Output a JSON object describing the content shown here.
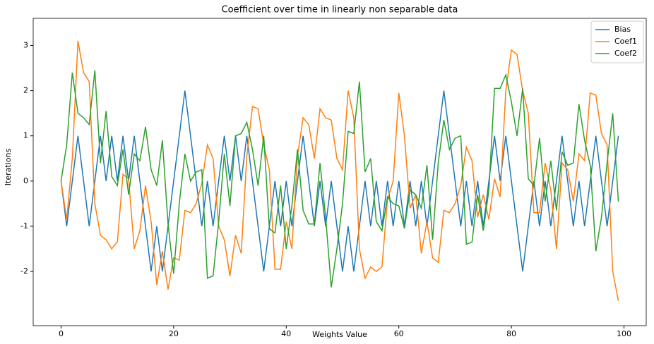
{
  "chart_data": {
    "type": "line",
    "title": "Coefficient over time in linearly non separable data",
    "xlabel": "Weights Value",
    "ylabel": "Iterations",
    "x": [
      0,
      1,
      2,
      3,
      4,
      5,
      6,
      7,
      8,
      9,
      10,
      11,
      12,
      13,
      14,
      15,
      16,
      17,
      18,
      19,
      20,
      21,
      22,
      23,
      24,
      25,
      26,
      27,
      28,
      29,
      30,
      31,
      32,
      33,
      34,
      35,
      36,
      37,
      38,
      39,
      40,
      41,
      42,
      43,
      44,
      45,
      46,
      47,
      48,
      49,
      50,
      51,
      52,
      53,
      54,
      55,
      56,
      57,
      58,
      59,
      60,
      61,
      62,
      63,
      64,
      65,
      66,
      67,
      68,
      69,
      70,
      71,
      72,
      73,
      74,
      75,
      76,
      77,
      78,
      79,
      80,
      81,
      82,
      83,
      84,
      85,
      86,
      87,
      88,
      89,
      90,
      91,
      92,
      93,
      94,
      95,
      96,
      97,
      98,
      99
    ],
    "series": [
      {
        "name": "Bias",
        "color": "#1f77b4",
        "values": [
          0,
          -1,
          0,
          1,
          0,
          -1,
          0,
          1,
          0,
          1,
          0,
          1,
          0,
          1,
          0,
          -1,
          -2,
          -1,
          -2,
          -1,
          0,
          1,
          2,
          1,
          0,
          -1,
          0,
          -1,
          0,
          1,
          0,
          1,
          0,
          1,
          0,
          -1,
          -2,
          -1,
          0,
          -1,
          0,
          -1,
          0,
          1,
          0,
          -1,
          0,
          -1,
          0,
          -1,
          -2,
          -1,
          -2,
          -1,
          0,
          -1,
          0,
          -1,
          0,
          -1,
          0,
          -1,
          0,
          -1,
          0,
          -1,
          0,
          1,
          2,
          1,
          0,
          -1,
          0,
          -1,
          0,
          -1,
          0,
          1,
          0,
          1,
          0,
          -1,
          -2,
          -1,
          0,
          -1,
          0,
          -1,
          0,
          1,
          0,
          -1,
          0,
          -1,
          0,
          1,
          0,
          -1,
          0,
          1
        ]
      },
      {
        "name": "Coef1",
        "color": "#ff7f0e",
        "values": [
          0,
          -0.85,
          0.5,
          3.1,
          2.4,
          2.2,
          -0.5,
          -1.2,
          -1.3,
          -1.5,
          -1.35,
          0.15,
          0.05,
          -1.5,
          -1.1,
          -0.1,
          -0.9,
          -2.3,
          -1.55,
          -2.4,
          -1.7,
          -1.75,
          -0.65,
          -0.7,
          -0.5,
          -0.05,
          0.8,
          0.5,
          -1.0,
          -1.3,
          -2.1,
          -1.2,
          -1.6,
          0.55,
          1.65,
          1.6,
          0.8,
          0.25,
          -1.95,
          -1.95,
          -0.9,
          -1.5,
          0.55,
          1.4,
          1.25,
          0.5,
          1.6,
          1.4,
          1.35,
          0.5,
          0.25,
          2.0,
          1.4,
          -1.5,
          -2.15,
          -1.9,
          -2.0,
          -1.9,
          -0.4,
          0.0,
          1.95,
          1.0,
          -0.6,
          -0.3,
          -1.6,
          -0.9,
          -1.7,
          -1.8,
          -0.65,
          -0.7,
          -0.5,
          -0.1,
          0.75,
          0.45,
          -0.8,
          -0.3,
          -0.85,
          0.05,
          -0.35,
          2.0,
          2.9,
          2.8,
          2.0,
          1.5,
          -0.7,
          -0.7,
          0.4,
          -0.2,
          -1.5,
          0.4,
          0.25,
          -0.45,
          0.6,
          0.45,
          1.95,
          1.9,
          1.05,
          0.8,
          -2.0,
          -2.65
        ]
      },
      {
        "name": "Coef2",
        "color": "#2ca02c",
        "values": [
          0,
          0.8,
          2.4,
          1.5,
          1.4,
          1.25,
          2.45,
          0.4,
          1.55,
          0.1,
          -0.1,
          0.7,
          -0.3,
          0.6,
          0.45,
          1.2,
          0.25,
          -0.1,
          0.9,
          -0.95,
          -2.05,
          -0.5,
          0.6,
          0.0,
          0.2,
          0.25,
          -2.15,
          -2.1,
          -0.9,
          0.6,
          -0.55,
          1.0,
          1.05,
          1.3,
          0.7,
          -0.1,
          1.0,
          -1.05,
          -1.15,
          -0.1,
          -1.5,
          -0.55,
          0.7,
          -0.65,
          -0.95,
          -0.95,
          0.4,
          -0.8,
          -2.35,
          -1.5,
          -0.5,
          1.1,
          1.05,
          2.2,
          0.2,
          0.5,
          -0.9,
          -1.1,
          -0.35,
          -0.5,
          -0.55,
          -1.05,
          -0.2,
          -0.3,
          -0.6,
          0.35,
          -1.3,
          0.4,
          1.35,
          0.7,
          0.95,
          1.0,
          -1.4,
          -1.35,
          -0.3,
          -1.1,
          -0.2,
          2.05,
          2.05,
          2.35,
          1.75,
          1.0,
          2.05,
          0.05,
          -0.1,
          0.95,
          -0.45,
          0.45,
          -0.65,
          0.65,
          0.35,
          0.4,
          1.7,
          0.9,
          0.35,
          -1.55,
          -0.8,
          0.4,
          1.5,
          -0.45
        ]
      }
    ],
    "xlim": [
      -4.95,
      103.95
    ],
    "ylim": [
      -3.2,
      3.6
    ],
    "xticks": [
      0,
      20,
      40,
      60,
      80,
      100
    ],
    "yticks": [
      -2,
      -1,
      0,
      1,
      2,
      3
    ],
    "legend": "upper right"
  }
}
